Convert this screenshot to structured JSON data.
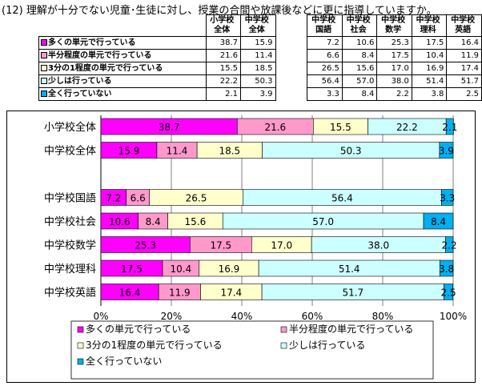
{
  "title": "(12) 理解が十分でない児童･生徒に対し、授業の合間や放課後などに更に指導していますか。",
  "colors": [
    "#ff00ff",
    "#ff99cc",
    "#ffffcc",
    "#ccffff",
    "#00b0f0"
  ],
  "chart_data": {
    "type": "bar",
    "orientation": "horizontal",
    "stacked": true,
    "percent": true,
    "categories": [
      "小学校全体",
      "中学校全体",
      "",
      "中学校国語",
      "中学校社会",
      "中学校数学",
      "中学校理科",
      "中学校英語"
    ],
    "series": [
      {
        "name": "多くの単元で行っている",
        "values": [
          38.7,
          15.9,
          null,
          7.2,
          10.6,
          25.3,
          17.5,
          16.4
        ]
      },
      {
        "name": "半分程度の単元で行っている",
        "values": [
          21.6,
          11.4,
          null,
          6.6,
          8.4,
          17.5,
          10.4,
          11.9
        ]
      },
      {
        "name": "3分の1程度の単元で行っている",
        "values": [
          15.5,
          18.5,
          null,
          26.5,
          15.6,
          17.0,
          16.9,
          17.4
        ]
      },
      {
        "name": "少しは行っている",
        "values": [
          22.2,
          50.3,
          null,
          56.4,
          57.0,
          38.0,
          51.4,
          51.7
        ]
      },
      {
        "name": "全く行っていない",
        "values": [
          2.1,
          3.9,
          null,
          3.3,
          8.4,
          2.2,
          3.8,
          2.5
        ]
      }
    ],
    "xlim": [
      0,
      100
    ],
    "xticks": [
      "0%",
      "20%",
      "40%",
      "60%",
      "80%",
      "100%"
    ],
    "legend_position": "bottom"
  },
  "table": {
    "headers": [
      "小学校\n全体",
      "中学校\n全体",
      "",
      "中学校\n国語",
      "中学校\n社会",
      "中学校\n数学",
      "中学校\n理科",
      "中学校\n英語"
    ],
    "rows": [
      {
        "label": "多くの単元で行っている",
        "values": [
          "38.7",
          "15.9",
          "",
          "7.2",
          "10.6",
          "25.3",
          "17.5",
          "16.4"
        ]
      },
      {
        "label": "半分程度の単元で行っている",
        "values": [
          "21.6",
          "11.4",
          "",
          "6.6",
          "8.4",
          "17.5",
          "10.4",
          "11.9"
        ]
      },
      {
        "label": "3分の1程度の単元で行っている",
        "values": [
          "15.5",
          "18.5",
          "",
          "26.5",
          "15.6",
          "17.0",
          "16.9",
          "17.4"
        ]
      },
      {
        "label": "少しは行っている",
        "values": [
          "22.2",
          "50.3",
          "",
          "56.4",
          "57.0",
          "38.0",
          "51.4",
          "51.7"
        ]
      },
      {
        "label": "全く行っていない",
        "values": [
          "2.1",
          "3.9",
          "",
          "3.3",
          "8.4",
          "2.2",
          "3.8",
          "2.5"
        ]
      }
    ]
  }
}
